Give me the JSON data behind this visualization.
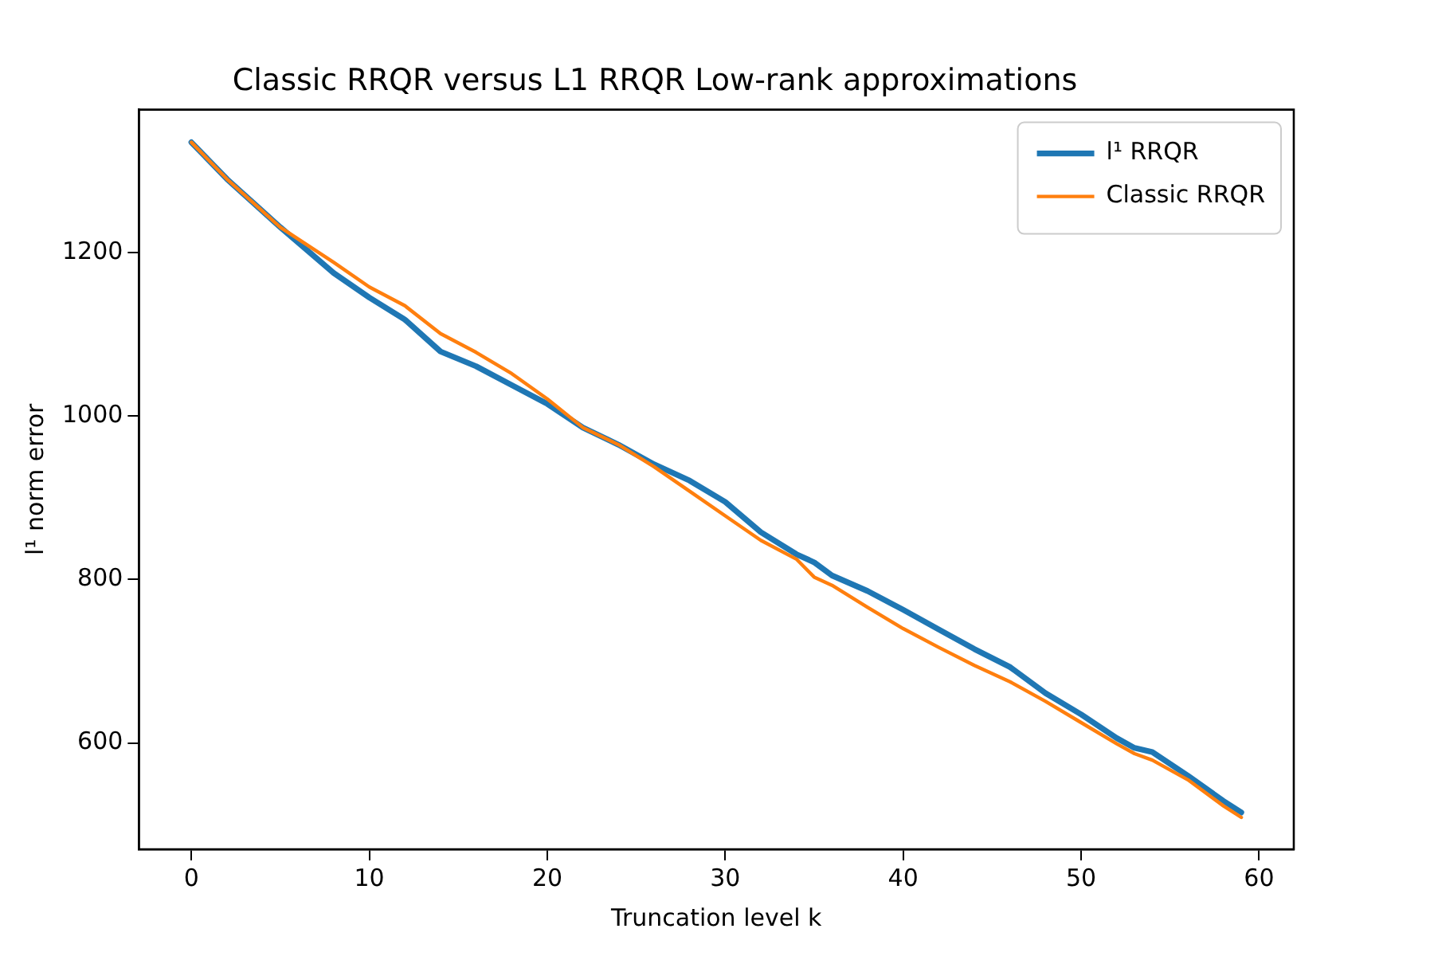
{
  "chart_data": {
    "type": "line",
    "title": "Classic RRQR versus L1 RRQR Low-rank approximations",
    "xlabel": "Truncation level k",
    "ylabel": "l¹ norm error",
    "x": [
      0,
      2,
      5,
      8,
      10,
      12,
      14,
      16,
      18,
      20,
      22,
      24,
      26,
      28,
      30,
      32,
      34,
      35,
      36,
      38,
      40,
      42,
      44,
      46,
      48,
      50,
      52,
      53,
      54,
      56,
      58,
      59
    ],
    "series": [
      {
        "name": "l¹ RRQR",
        "color": "#1f77b4",
        "values": [
          1335,
          1290,
          1231,
          1175,
          1145,
          1118,
          1079,
          1061,
          1038,
          1015,
          986,
          965,
          941,
          921,
          895,
          858,
          831,
          821,
          805,
          786,
          763,
          739,
          715,
          693,
          661,
          635,
          606,
          594,
          589,
          560,
          529,
          515
        ]
      },
      {
        "name": "Classic RRQR",
        "color": "#ff7f0e",
        "values": [
          1335,
          1290,
          1231,
          1188,
          1158,
          1135,
          1101,
          1078,
          1052,
          1021,
          986,
          965,
          938,
          908,
          878,
          848,
          825,
          803,
          793,
          766,
          740,
          717,
          695,
          675,
          651,
          625,
          599,
          587,
          579,
          555,
          523,
          509
        ]
      }
    ],
    "xlim": [
      -2.95,
      61.95
    ],
    "xticks": [
      0,
      10,
      20,
      30,
      40,
      50,
      60
    ],
    "ylim": [
      470,
      1375
    ],
    "yticks": [
      600,
      800,
      1000,
      1200
    ],
    "grid": false,
    "legend": "top right",
    "marker": "none",
    "line_style": "solid"
  }
}
